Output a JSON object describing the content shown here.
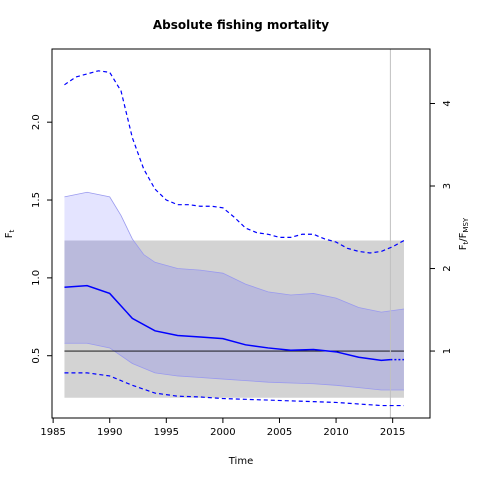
{
  "chart_data": {
    "type": "line",
    "title": "Absolute fishing mortality",
    "xlabel": "Time",
    "ylabel_main": "F",
    "ylabel_main_sub": "t",
    "ylabel_right_parts": [
      "F",
      "t",
      "/F",
      "MSY"
    ],
    "xlim": [
      1984.9,
      2018.3
    ],
    "ylim": [
      0.1,
      2.47
    ],
    "x_ticks": [
      1985,
      1990,
      1995,
      2000,
      2005,
      2010,
      2015
    ],
    "y_ticks": [
      0.5,
      1.0,
      1.5,
      2.0
    ],
    "y_tick_labels": [
      "0.5",
      "1.0",
      "1.5",
      "2.0"
    ],
    "right_axis_ticks": [
      1,
      2,
      3,
      4
    ],
    "right_axis_tick_labels": [
      "1",
      "2",
      "3",
      "4"
    ],
    "msy_value": 0.53,
    "msy_band": {
      "x": [
        1986,
        2016
      ],
      "y": [
        0.23,
        1.24
      ]
    },
    "vertical_line_x": 2014.8,
    "estimate": {
      "x": [
        1986,
        1988,
        1990,
        1992,
        1994,
        1996,
        1998,
        2000,
        2002,
        2004,
        2006,
        2008,
        2010,
        2012,
        2014,
        2014.8
      ],
      "y": [
        0.94,
        0.95,
        0.9,
        0.74,
        0.66,
        0.63,
        0.62,
        0.61,
        0.57,
        0.55,
        0.535,
        0.54,
        0.525,
        0.49,
        0.47,
        0.475
      ]
    },
    "estimate_forecast": {
      "x": [
        2014.8,
        2016
      ],
      "y": [
        0.475,
        0.475
      ]
    },
    "ci_upper": {
      "x": [
        1986,
        1988,
        1990,
        1991,
        1992,
        1993,
        1994,
        1996,
        1998,
        2000,
        2002,
        2004,
        2006,
        2008,
        2010,
        2012,
        2014,
        2016
      ],
      "y": [
        1.52,
        1.55,
        1.52,
        1.4,
        1.25,
        1.15,
        1.1,
        1.06,
        1.05,
        1.03,
        0.96,
        0.91,
        0.89,
        0.9,
        0.87,
        0.81,
        0.78,
        0.8
      ]
    },
    "ci_lower": {
      "x": [
        1986,
        1988,
        1990,
        1992,
        1994,
        1996,
        1998,
        2000,
        2002,
        2004,
        2006,
        2008,
        2010,
        2012,
        2014,
        2016
      ],
      "y": [
        0.58,
        0.58,
        0.55,
        0.45,
        0.39,
        0.37,
        0.36,
        0.35,
        0.34,
        0.33,
        0.325,
        0.32,
        0.31,
        0.295,
        0.28,
        0.28
      ]
    },
    "upper_dashed": {
      "x": [
        1986,
        1987,
        1988,
        1989,
        1990,
        1991,
        1992,
        1993,
        1994,
        1995,
        1996,
        1997,
        1998,
        1999,
        2000,
        2001,
        2002,
        2003,
        2004,
        2005,
        2006,
        2007,
        2008,
        2009,
        2010,
        2011,
        2012,
        2013,
        2014,
        2015,
        2016
      ],
      "y": [
        2.24,
        2.29,
        2.31,
        2.33,
        2.32,
        2.2,
        1.9,
        1.7,
        1.57,
        1.5,
        1.47,
        1.47,
        1.46,
        1.46,
        1.45,
        1.39,
        1.32,
        1.29,
        1.28,
        1.26,
        1.26,
        1.28,
        1.28,
        1.25,
        1.23,
        1.19,
        1.17,
        1.16,
        1.17,
        1.2,
        1.24
      ]
    },
    "lower_dashed": {
      "x": [
        1986,
        1988,
        1990,
        1992,
        1994,
        1996,
        1998,
        2000,
        2002,
        2004,
        2006,
        2008,
        2010,
        2012,
        2014,
        2016
      ],
      "y": [
        0.39,
        0.39,
        0.37,
        0.31,
        0.26,
        0.24,
        0.235,
        0.225,
        0.22,
        0.215,
        0.21,
        0.205,
        0.2,
        0.19,
        0.18,
        0.18
      ]
    },
    "colors": {
      "band": "#d3d3d3",
      "ci_fill": "#e4e4ff",
      "ci_overlap": "#babadc",
      "ci_edge": "#9a9aee",
      "estimate": "#0000ff",
      "msy_line": "#000000",
      "vline": "#c0c0c0"
    }
  }
}
